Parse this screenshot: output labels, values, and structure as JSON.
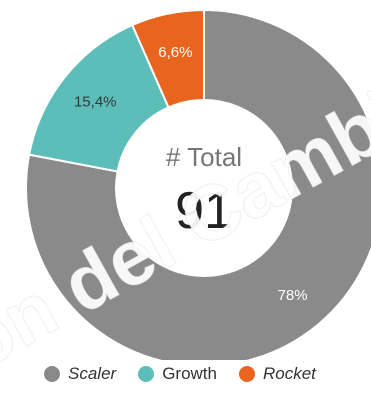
{
  "chart_data": {
    "type": "pie",
    "categories": [
      "Scaler",
      "Growth",
      "Rocket"
    ],
    "values": [
      78,
      15.4,
      6.6
    ],
    "value_labels": [
      "78%",
      "15,4%",
      "6,6%"
    ],
    "colors": [
      "#8a8a8a",
      "#5cbdb9",
      "#e9651f"
    ],
    "center_title": "# Total",
    "center_value": "91",
    "legend_position": "bottom",
    "legend_italic": [
      true,
      false,
      true
    ]
  },
  "watermark_text": "on del Cambio"
}
